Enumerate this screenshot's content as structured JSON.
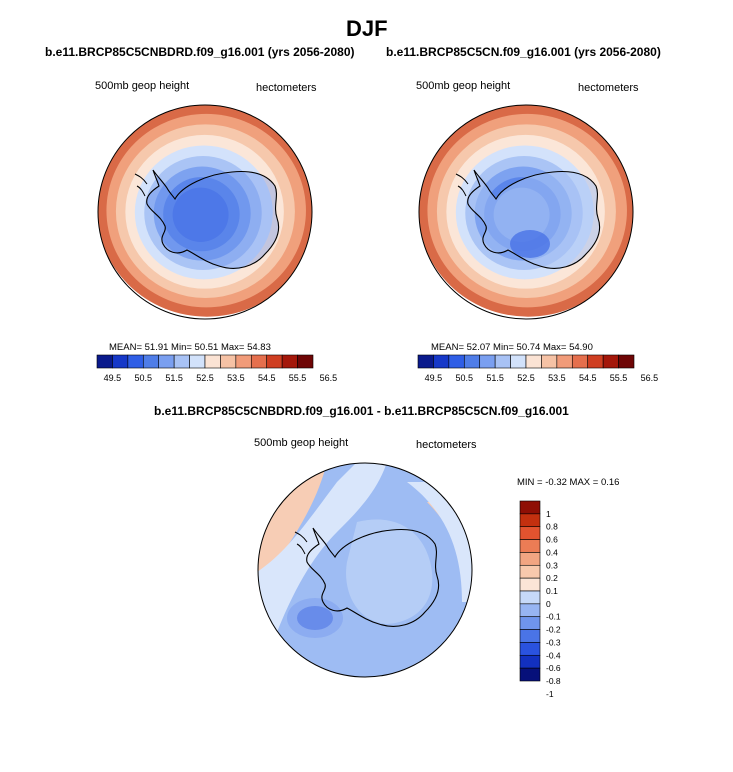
{
  "page": {
    "season": "DJF",
    "diff_title": "b.e11.BRCP85C5CNBDRD.f09_g16.001 - b.e11.BRCP85C5CN.f09_g16.001"
  },
  "panels": [
    {
      "case_title": "b.e11.BRCP85C5CNBDRD.f09_g16.001 (yrs 2056-2080)",
      "field_label": "500mb geop height",
      "units_label": "hectometers",
      "stats": "MEAN=  51.91   Min=  50.51   Max=  54.83"
    },
    {
      "case_title": "b.e11.BRCP85C5CN.f09_g16.001 (yrs 2056-2080)",
      "field_label": "500mb geop height",
      "units_label": "hectometers",
      "stats": "MEAN=  52.07   Min=  50.74   Max=  54.90"
    },
    {
      "field_label": "500mb geop height",
      "units_label": "hectometers",
      "stats": "MIN =  -0.32 MAX =   0.16"
    }
  ],
  "abs_colorbar": {
    "colors": [
      "#0a1a8c",
      "#1638c8",
      "#2f5ee6",
      "#4f7de8",
      "#7a9ff0",
      "#a8c2f5",
      "#d2e2fb",
      "#fbe3d4",
      "#f6c2a5",
      "#f19b79",
      "#e56f4d",
      "#cf3e21",
      "#a4170a",
      "#6e0505"
    ],
    "ticks": [
      "49.5",
      "50.5",
      "51.5",
      "52.5",
      "53.5",
      "54.5",
      "55.5",
      "56.5"
    ]
  },
  "diff_colorbar": {
    "colors": [
      "#06107a",
      "#1230c0",
      "#2a52df",
      "#4a74e6",
      "#6f95ec",
      "#97b5f2",
      "#c6d9f8",
      "#fbe5d7",
      "#f8c9ad",
      "#f2a582",
      "#ec7c55",
      "#e2532f",
      "#c3300f",
      "#8f0f05"
    ],
    "ticks": [
      "1",
      "0.8",
      "0.6",
      "0.4",
      "0.3",
      "0.2",
      "0.1",
      "0",
      "-0.1",
      "-0.2",
      "-0.3",
      "-0.4",
      "-0.6",
      "-0.8",
      "-1"
    ]
  },
  "maps": {
    "map1_rings": [
      "#d96a47",
      "#f0a07c",
      "#f6c8ac",
      "#fbe6d8",
      "#d3e2fb",
      "#aac4f5",
      "#7da2f0",
      "#5a85ea",
      "#4570e6"
    ],
    "map2_rings": [
      "#d96a47",
      "#f0a07c",
      "#f6c8ac",
      "#fbe6d8",
      "#d3e2fb",
      "#aac4f5",
      "#7da2f0",
      "#5a85ea",
      "#7aa0ef"
    ],
    "map3_base": "#9ebcf3",
    "map3_shades": [
      "#f7cdb5",
      "#d9e6fb",
      "#b5cdf6",
      "#7d9fee",
      "#4f77e4"
    ]
  }
}
